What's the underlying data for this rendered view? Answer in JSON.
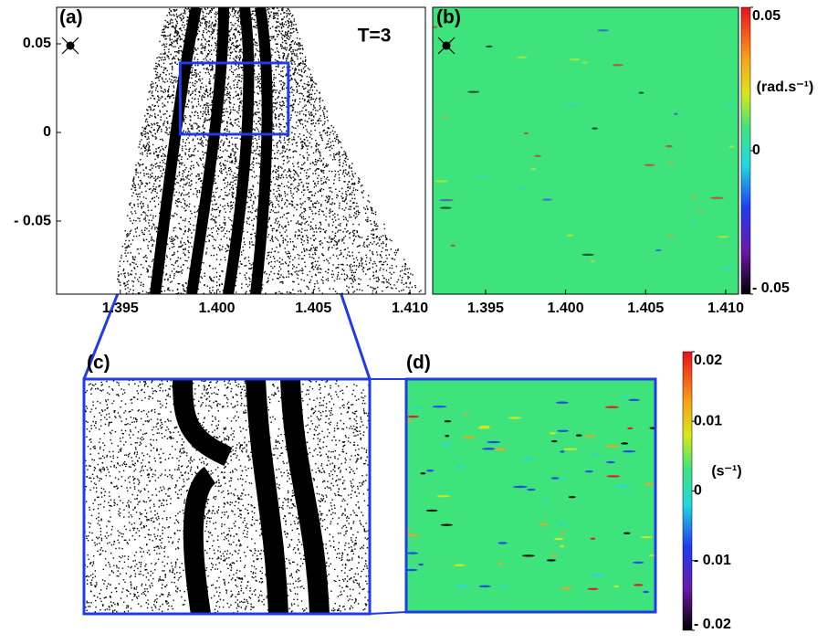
{
  "chart_data": [
    {
      "type": "scatter",
      "title": "(a)",
      "annotation": "T=3",
      "color": "#000000",
      "xlim": [
        1.3917,
        1.4108
      ],
      "ylim": [
        -0.0912,
        0.0706
      ],
      "xticks": [
        1.395,
        {
          "value": 1.4,
          "label": "1.400"
        },
        1.405,
        {
          "value": 1.41,
          "label": "1.410"
        }
      ],
      "yticks": [
        0.05,
        0,
        {
          "value": -0.05,
          "label": "- 0.05"
        }
      ],
      "zoom_box": {
        "x": [
          1.3981,
          1.4037
        ],
        "y": [
          -0.001,
          0.0392
        ]
      }
    },
    {
      "type": "heatmap",
      "title": "(b)",
      "color": "#3fe37c",
      "xlim": [
        1.3917,
        1.4108
      ],
      "xticks": [
        1.395,
        {
          "value": 1.4,
          "label": "1.400"
        },
        1.405,
        {
          "value": 1.41,
          "label": "1.410"
        }
      ],
      "clim": [
        -0.05,
        0.05
      ],
      "cticks": [
        0.05,
        0,
        {
          "value": -0.05,
          "label": "- 0.05"
        }
      ],
      "colorbar_label": "(rad.s⁻¹)"
    },
    {
      "type": "scatter",
      "title": "(c)",
      "color": "#000000"
    },
    {
      "type": "heatmap",
      "title": "(d)",
      "color": "#3fe37c",
      "clim": [
        -0.02,
        0.02
      ],
      "cticks": [
        0.02,
        0.01,
        0,
        {
          "value": -0.01,
          "label": "- 0.01"
        },
        {
          "value": -0.02,
          "label": "- 0.02"
        }
      ],
      "colorbar_label": "(s⁻¹)"
    }
  ]
}
